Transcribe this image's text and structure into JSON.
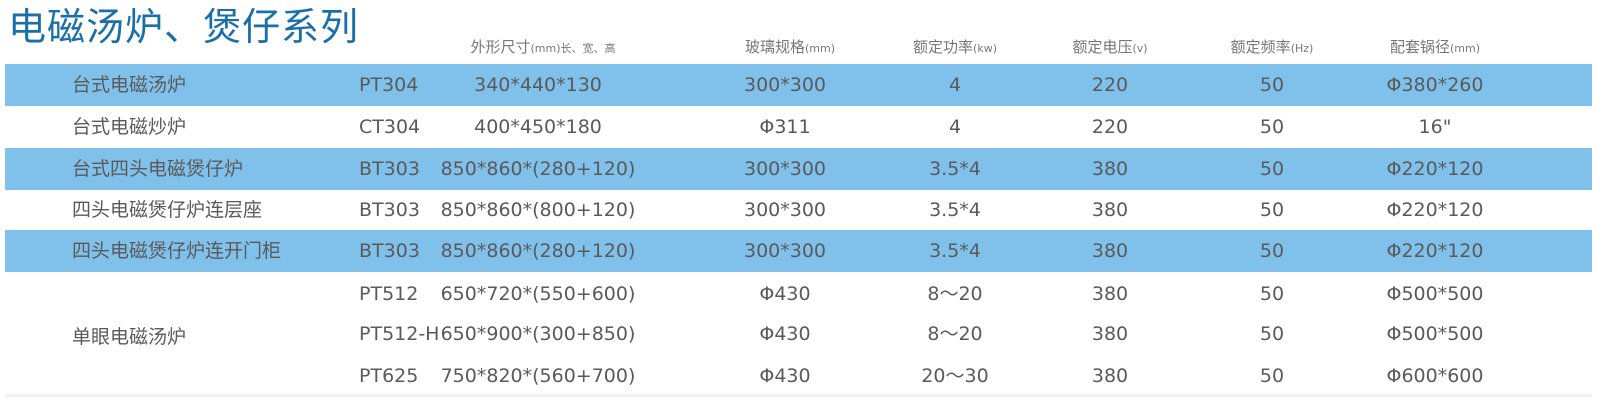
{
  "title": "电磁汤炉、煲仔系列",
  "colors": {
    "row_highlight": "#80c1ec",
    "title": "#1a6fa8",
    "text": "#5a5a5a"
  },
  "headers": [
    {
      "label": "外形尺寸",
      "unit": "(mm)长、宽、高"
    },
    {
      "label": "玻璃规格",
      "unit": "(mm)"
    },
    {
      "label": "额定功率",
      "unit": "(kw)"
    },
    {
      "label": "额定电压",
      "unit": "(v)"
    },
    {
      "label": "额定频率",
      "unit": "(Hz)"
    },
    {
      "label": "配套锅径",
      "unit": "(mm)"
    }
  ],
  "rows": [
    {
      "name": "台式电磁汤炉",
      "model": "PT304",
      "size": "340*440*130",
      "glass": "300*300",
      "power": "4",
      "voltage": "220",
      "freq": "50",
      "pot": "Φ380*260"
    },
    {
      "name": "台式电磁炒炉",
      "model": "CT304",
      "size": "400*450*180",
      "glass": "Φ311",
      "power": "4",
      "voltage": "220",
      "freq": "50",
      "pot": "16\""
    },
    {
      "name": "台式四头电磁煲仔炉",
      "model": "BT303",
      "size": "850*860*(280+120)",
      "glass": "300*300",
      "power": "3.5*4",
      "voltage": "380",
      "freq": "50",
      "pot": "Φ220*120"
    },
    {
      "name": "四头电磁煲仔炉连层座",
      "model": "BT303",
      "size": "850*860*(800+120)",
      "glass": "300*300",
      "power": "3.5*4",
      "voltage": "380",
      "freq": "50",
      "pot": "Φ220*120"
    },
    {
      "name": "四头电磁煲仔炉连开门柜",
      "model": "BT303",
      "size": "850*860*(280+120)",
      "glass": "300*300",
      "power": "3.5*4",
      "voltage": "380",
      "freq": "50",
      "pot": "Φ220*120"
    },
    {
      "name": "",
      "model": "PT512",
      "size": "650*720*(550+600)",
      "glass": "Φ430",
      "power": "8～20",
      "voltage": "380",
      "freq": "50",
      "pot": "Φ500*500"
    },
    {
      "name": "",
      "model": "PT512-H",
      "size": "650*900*(300+850)",
      "glass": "Φ430",
      "power": "8～20",
      "voltage": "380",
      "freq": "50",
      "pot": "Φ500*500"
    },
    {
      "name": "",
      "model": "PT625",
      "size": "750*820*(560+700)",
      "glass": "Φ430",
      "power": "20～30",
      "voltage": "380",
      "freq": "50",
      "pot": "Φ600*600"
    }
  ],
  "group_name": "单眼电磁汤炉"
}
